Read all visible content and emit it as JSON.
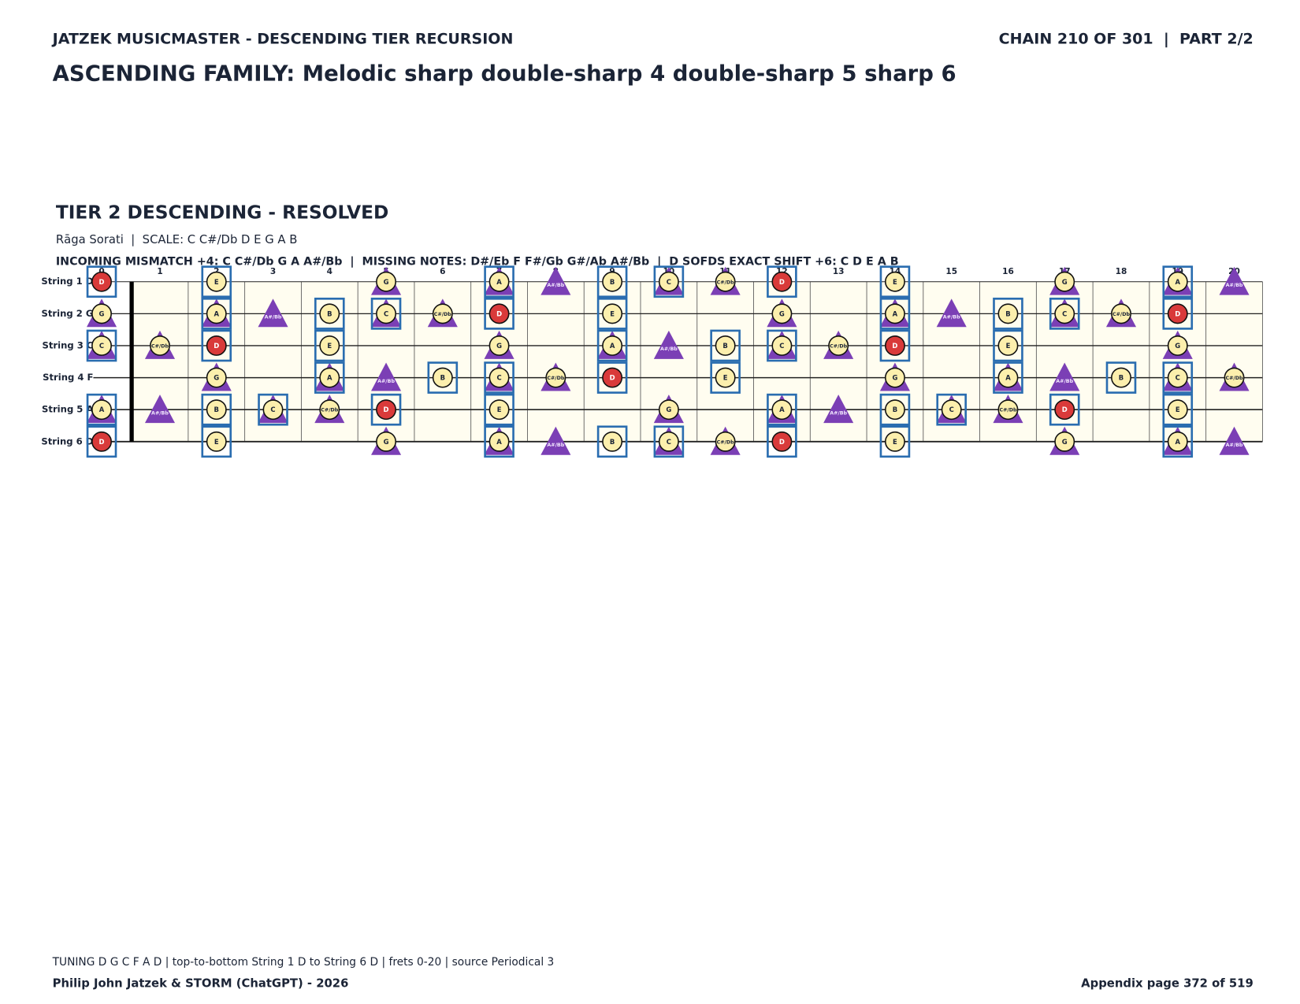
{
  "header": {
    "left": "JATZEK MUSICMASTER - DESCENDING TIER RECURSION",
    "right": "CHAIN 210 OF 301  |  PART 2/2",
    "title": "ASCENDING FAMILY: Melodic sharp double-sharp 4 double-sharp 5 sharp 6"
  },
  "tier": {
    "title": "TIER 2 DESCENDING - RESOLVED",
    "subtitle": "Rāga Sorati  |  SCALE: C C#/Db D E G A B",
    "notes": "INCOMING MISMATCH +4: C C#/Db G A A#/Bb  |  MISSING NOTES: D#/Eb F F#/Gb G#/Ab A#/Bb  |  D SOFDS EXACT SHIFT +6: C D E A B"
  },
  "fretboard": {
    "frets": [
      0,
      1,
      2,
      3,
      4,
      5,
      6,
      7,
      8,
      9,
      10,
      11,
      12,
      13,
      14,
      15,
      16,
      17,
      18,
      19,
      20
    ],
    "strings": [
      {
        "label": "String 1 D",
        "frets": [
          {
            "note": "D",
            "circle": "root",
            "box": true
          },
          null,
          {
            "note": "E",
            "circle": "scale",
            "box": true
          },
          null,
          null,
          {
            "note": "G",
            "circle": "scale",
            "triangle": true
          },
          null,
          {
            "note": "A",
            "circle": "scale",
            "triangle": true,
            "box": true
          },
          {
            "note": "A#/Bb",
            "triangle": true
          },
          {
            "note": "B",
            "circle": "scale",
            "box": true
          },
          {
            "note": "C",
            "circle": "scale",
            "triangle": true,
            "box": true
          },
          {
            "note": "C#/Db",
            "circle": "scale",
            "triangle": true
          },
          {
            "note": "D",
            "circle": "root",
            "box": true
          },
          null,
          {
            "note": "E",
            "circle": "scale",
            "box": true
          },
          null,
          null,
          {
            "note": "G",
            "circle": "scale",
            "triangle": true
          },
          null,
          {
            "note": "A",
            "circle": "scale",
            "triangle": true,
            "box": true
          },
          {
            "note": "A#/Bb",
            "triangle": true
          }
        ]
      },
      {
        "label": "String 2 G",
        "frets": [
          {
            "note": "G",
            "circle": "scale",
            "triangle": true
          },
          null,
          {
            "note": "A",
            "circle": "scale",
            "triangle": true,
            "box": true
          },
          {
            "note": "A#/Bb",
            "triangle": true
          },
          {
            "note": "B",
            "circle": "scale",
            "box": true
          },
          {
            "note": "C",
            "circle": "scale",
            "triangle": true,
            "box": true
          },
          {
            "note": "C#/Db",
            "circle": "scale",
            "triangle": true
          },
          {
            "note": "D",
            "circle": "root",
            "box": true
          },
          null,
          {
            "note": "E",
            "circle": "scale",
            "box": true
          },
          null,
          null,
          {
            "note": "G",
            "circle": "scale",
            "triangle": true
          },
          null,
          {
            "note": "A",
            "circle": "scale",
            "triangle": true,
            "box": true
          },
          {
            "note": "A#/Bb",
            "triangle": true
          },
          {
            "note": "B",
            "circle": "scale",
            "box": true
          },
          {
            "note": "C",
            "circle": "scale",
            "triangle": true,
            "box": true
          },
          {
            "note": "C#/Db",
            "circle": "scale",
            "triangle": true
          },
          {
            "note": "D",
            "circle": "root",
            "box": true
          },
          null
        ]
      },
      {
        "label": "String 3 C",
        "frets": [
          {
            "note": "C",
            "circle": "scale",
            "triangle": true,
            "box": true
          },
          {
            "note": "C#/Db",
            "circle": "scale",
            "triangle": true
          },
          {
            "note": "D",
            "circle": "root",
            "box": true
          },
          null,
          {
            "note": "E",
            "circle": "scale",
            "box": true
          },
          null,
          null,
          {
            "note": "G",
            "circle": "scale",
            "triangle": true
          },
          null,
          {
            "note": "A",
            "circle": "scale",
            "triangle": true,
            "box": true
          },
          {
            "note": "A#/Bb",
            "triangle": true
          },
          {
            "note": "B",
            "circle": "scale",
            "box": true
          },
          {
            "note": "C",
            "circle": "scale",
            "triangle": true,
            "box": true
          },
          {
            "note": "C#/Db",
            "circle": "scale",
            "triangle": true
          },
          {
            "note": "D",
            "circle": "root",
            "box": true
          },
          null,
          {
            "note": "E",
            "circle": "scale",
            "box": true
          },
          null,
          null,
          {
            "note": "G",
            "circle": "scale",
            "triangle": true
          },
          null
        ]
      },
      {
        "label": "String 4 F",
        "frets": [
          null,
          null,
          {
            "note": "G",
            "circle": "scale",
            "triangle": true
          },
          null,
          {
            "note": "A",
            "circle": "scale",
            "triangle": true,
            "box": true
          },
          {
            "note": "A#/Bb",
            "triangle": true
          },
          {
            "note": "B",
            "circle": "scale",
            "box": true
          },
          {
            "note": "C",
            "circle": "scale",
            "triangle": true,
            "box": true
          },
          {
            "note": "C#/Db",
            "circle": "scale",
            "triangle": true
          },
          {
            "note": "D",
            "circle": "root",
            "box": true
          },
          null,
          {
            "note": "E",
            "circle": "scale",
            "box": true
          },
          null,
          null,
          {
            "note": "G",
            "circle": "scale",
            "triangle": true
          },
          null,
          {
            "note": "A",
            "circle": "scale",
            "triangle": true,
            "box": true
          },
          {
            "note": "A#/Bb",
            "triangle": true
          },
          {
            "note": "B",
            "circle": "scale",
            "box": true
          },
          {
            "note": "C",
            "circle": "scale",
            "triangle": true,
            "box": true
          },
          {
            "note": "C#/Db",
            "circle": "scale",
            "triangle": true
          }
        ]
      },
      {
        "label": "String 5 A",
        "frets": [
          {
            "note": "A",
            "circle": "scale",
            "triangle": true,
            "box": true
          },
          {
            "note": "A#/Bb",
            "triangle": true
          },
          {
            "note": "B",
            "circle": "scale",
            "box": true
          },
          {
            "note": "C",
            "circle": "scale",
            "triangle": true,
            "box": true
          },
          {
            "note": "C#/Db",
            "circle": "scale",
            "triangle": true
          },
          {
            "note": "D",
            "circle": "root",
            "box": true
          },
          null,
          {
            "note": "E",
            "circle": "scale",
            "box": true
          },
          null,
          null,
          {
            "note": "G",
            "circle": "scale",
            "triangle": true
          },
          null,
          {
            "note": "A",
            "circle": "scale",
            "triangle": true,
            "box": true
          },
          {
            "note": "A#/Bb",
            "triangle": true
          },
          {
            "note": "B",
            "circle": "scale",
            "box": true
          },
          {
            "note": "C",
            "circle": "scale",
            "triangle": true,
            "box": true
          },
          {
            "note": "C#/Db",
            "circle": "scale",
            "triangle": true
          },
          {
            "note": "D",
            "circle": "root",
            "box": true
          },
          null,
          {
            "note": "E",
            "circle": "scale",
            "box": true
          },
          null
        ]
      },
      {
        "label": "String 6 D",
        "frets": [
          {
            "note": "D",
            "circle": "root",
            "box": true
          },
          null,
          {
            "note": "E",
            "circle": "scale",
            "box": true
          },
          null,
          null,
          {
            "note": "G",
            "circle": "scale",
            "triangle": true
          },
          null,
          {
            "note": "A",
            "circle": "scale",
            "triangle": true,
            "box": true
          },
          {
            "note": "A#/Bb",
            "triangle": true
          },
          {
            "note": "B",
            "circle": "scale",
            "box": true
          },
          {
            "note": "C",
            "circle": "scale",
            "triangle": true,
            "box": true
          },
          {
            "note": "C#/Db",
            "circle": "scale",
            "triangle": true
          },
          {
            "note": "D",
            "circle": "root",
            "box": true
          },
          null,
          {
            "note": "E",
            "circle": "scale",
            "box": true
          },
          null,
          null,
          {
            "note": "G",
            "circle": "scale",
            "triangle": true
          },
          null,
          {
            "note": "A",
            "circle": "scale",
            "triangle": true,
            "box": true
          },
          {
            "note": "A#/Bb",
            "triangle": true
          }
        ]
      }
    ]
  },
  "footer": {
    "tuning": "TUNING D G C F A D | top-to-bottom String 1 D to String 6 D | frets 0-20 | source Periodical 3",
    "credit": "Philip John Jatzek & STORM (ChatGPT) - 2026",
    "page": "Appendix page 372 of 519"
  }
}
